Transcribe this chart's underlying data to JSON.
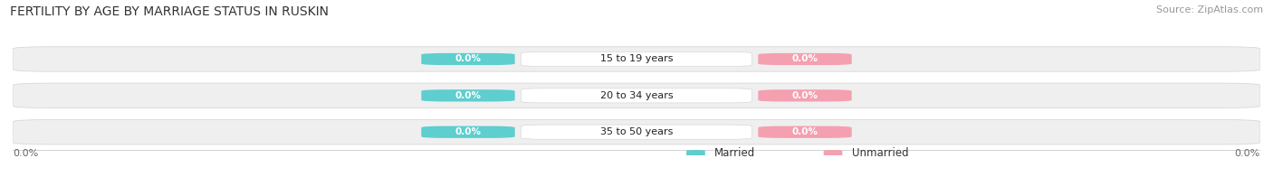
{
  "title": "FERTILITY BY AGE BY MARRIAGE STATUS IN RUSKIN",
  "source": "Source: ZipAtlas.com",
  "categories": [
    "15 to 19 years",
    "20 to 34 years",
    "35 to 50 years"
  ],
  "married_values": [
    0.0,
    0.0,
    0.0
  ],
  "unmarried_values": [
    0.0,
    0.0,
    0.0
  ],
  "married_color": "#5ecece",
  "unmarried_color": "#f4a0b0",
  "bar_bg_color": "#efefef",
  "bar_border_color": "#d8d8d8",
  "center_bg_color": "#ffffff",
  "xlim_left": -1.0,
  "xlim_right": 1.0,
  "title_fontsize": 10,
  "source_fontsize": 8,
  "label_fontsize": 8,
  "value_fontsize": 7.5,
  "legend_fontsize": 8.5,
  "axis_label_value_left": "0.0%",
  "axis_label_value_right": "0.0%",
  "background_color": "#ffffff"
}
